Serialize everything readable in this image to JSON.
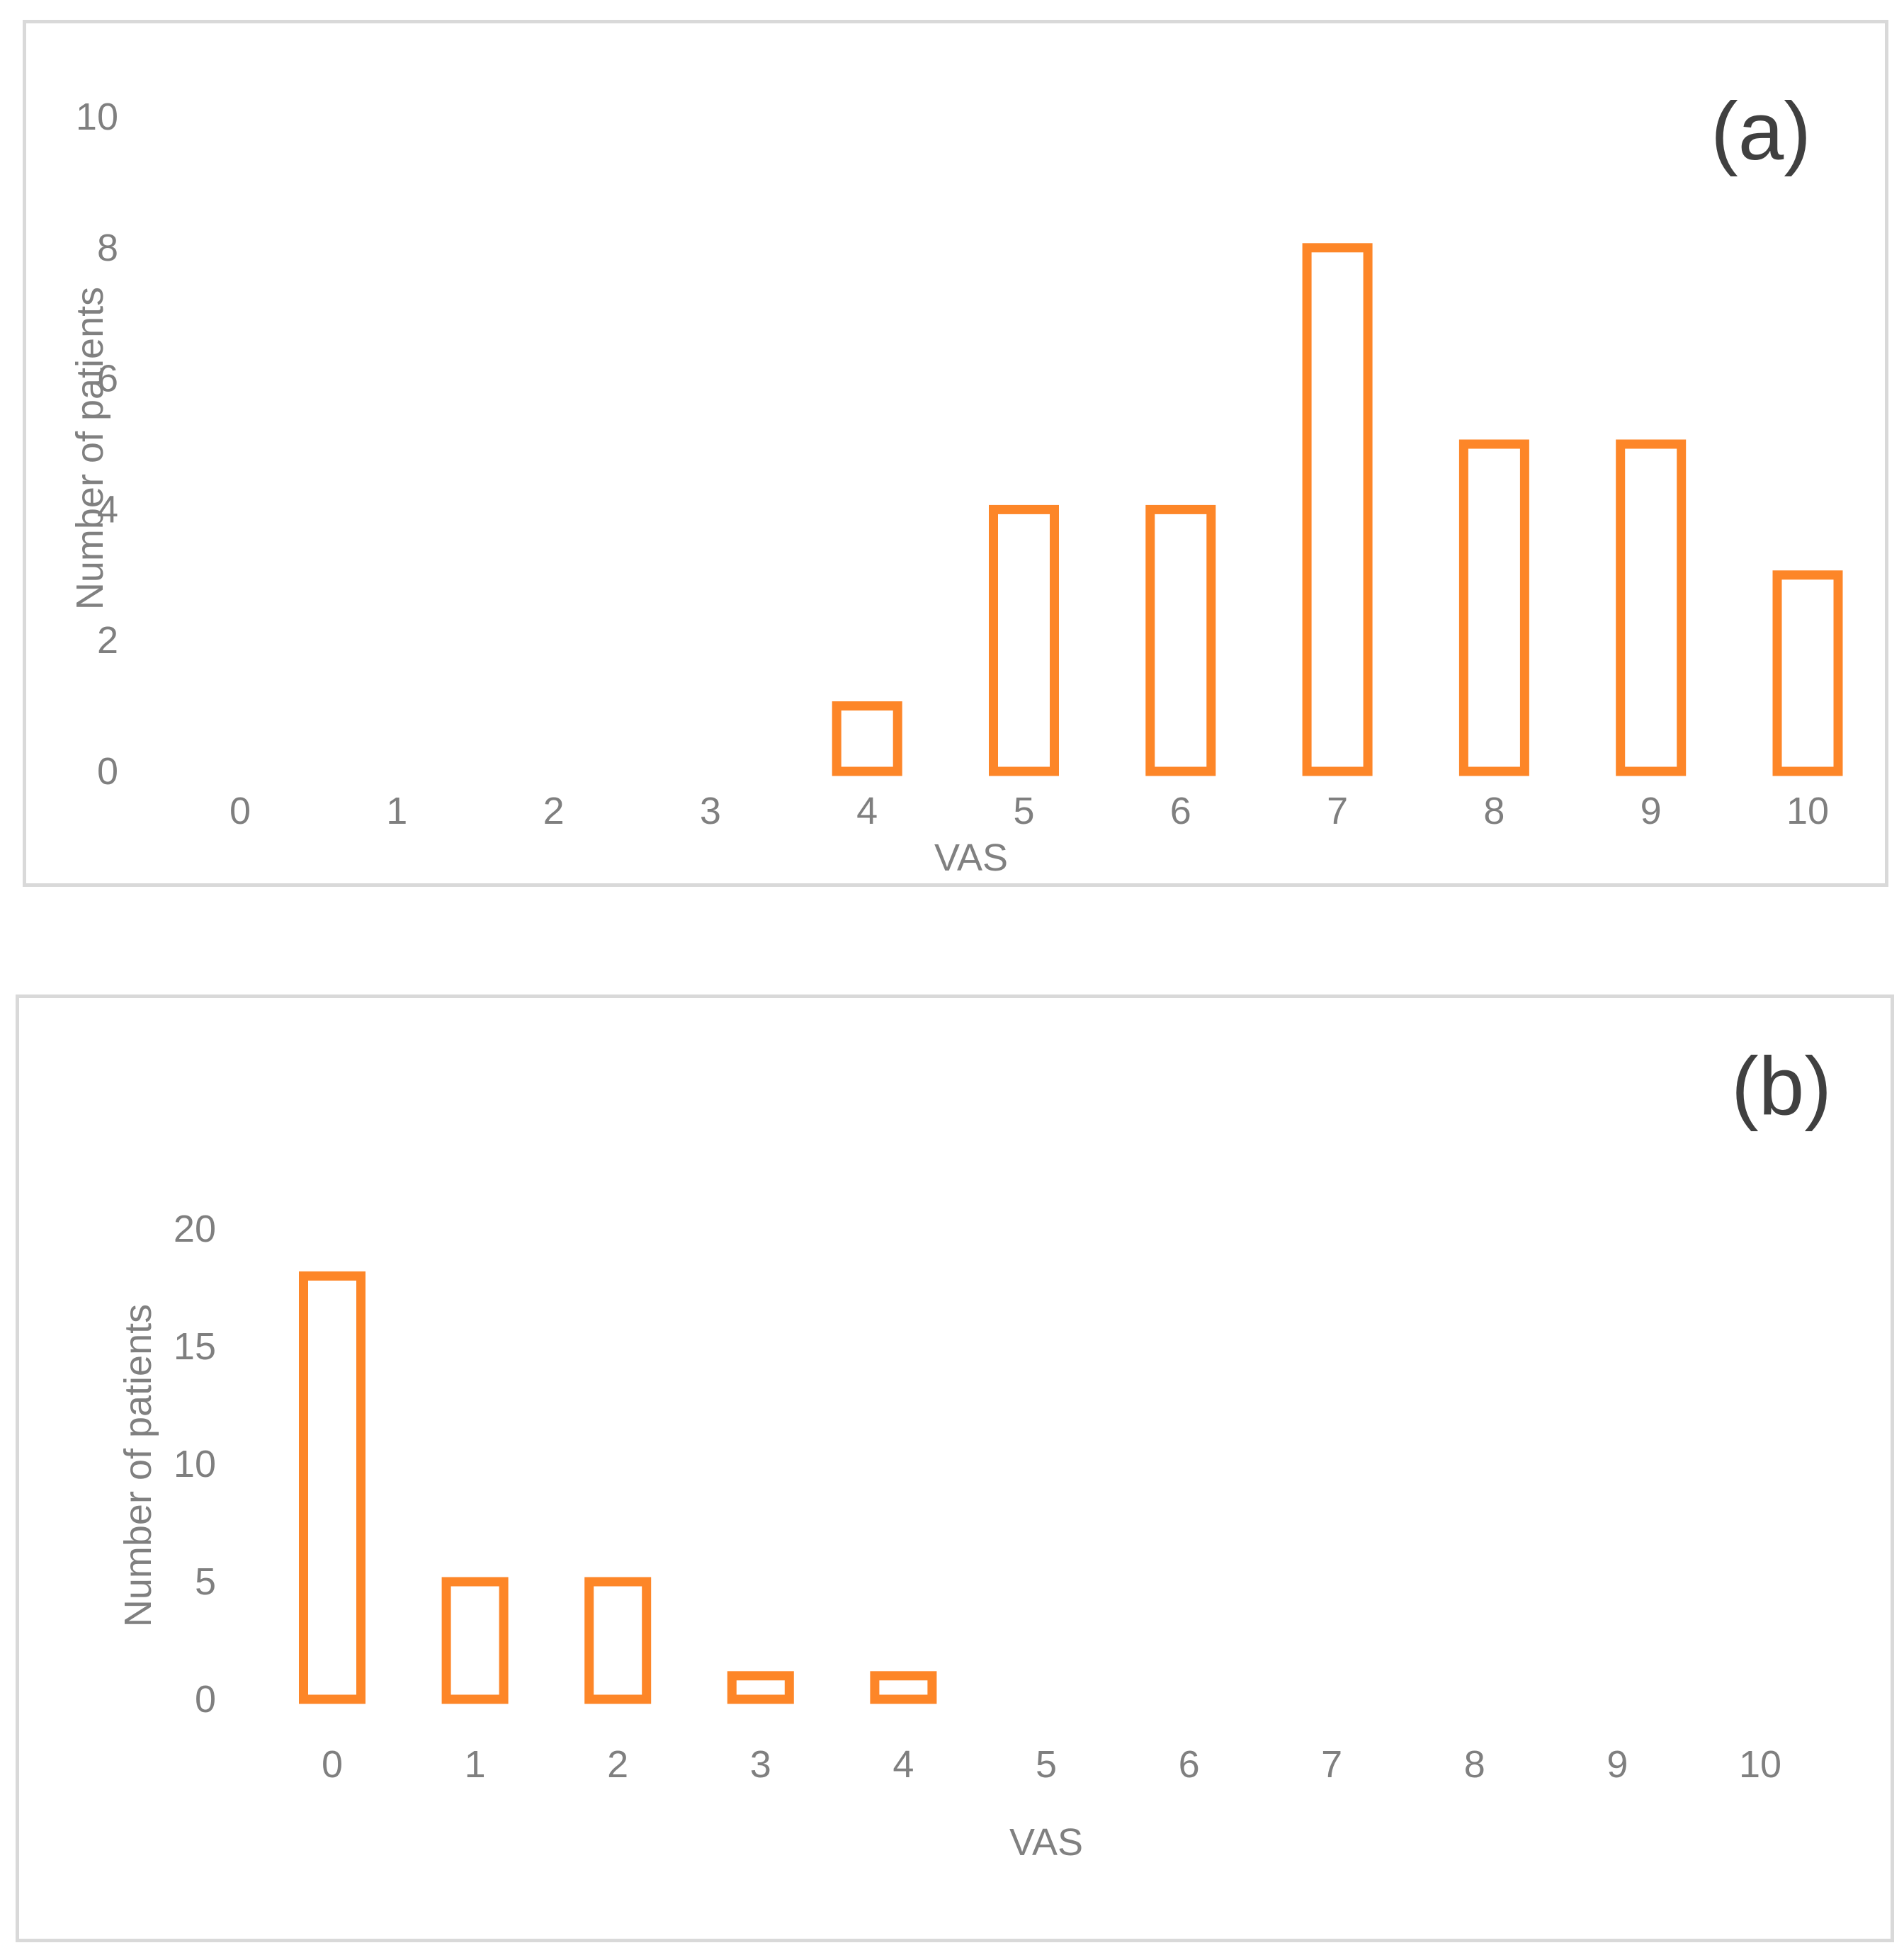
{
  "chart_data": [
    {
      "type": "bar",
      "panel_label": "(a)",
      "categories": [
        "0",
        "1",
        "2",
        "3",
        "4",
        "5",
        "6",
        "7",
        "8",
        "9",
        "10"
      ],
      "values": [
        0,
        0,
        0,
        0,
        1,
        4,
        4,
        8,
        5,
        5,
        3
      ],
      "yticks": [
        "0",
        "2",
        "4",
        "6",
        "8",
        "10"
      ],
      "xlabel": "VAS",
      "ylabel": "Number of patients",
      "ylim": [
        0,
        10
      ],
      "grid": false,
      "legend": "none",
      "bar_color": "#fd8628"
    },
    {
      "type": "bar",
      "panel_label": "(b)",
      "categories": [
        "0",
        "1",
        "2",
        "3",
        "4",
        "5",
        "6",
        "7",
        "8",
        "9",
        "10"
      ],
      "values": [
        18,
        5,
        5,
        1,
        1,
        0,
        0,
        0,
        0,
        0,
        0
      ],
      "yticks": [
        "0",
        "5",
        "10",
        "15",
        "20"
      ],
      "xlabel": "VAS",
      "ylabel": "Number of patients",
      "ylim": [
        0,
        20
      ],
      "grid": false,
      "legend": "none",
      "bar_color": "#fd8628"
    }
  ]
}
